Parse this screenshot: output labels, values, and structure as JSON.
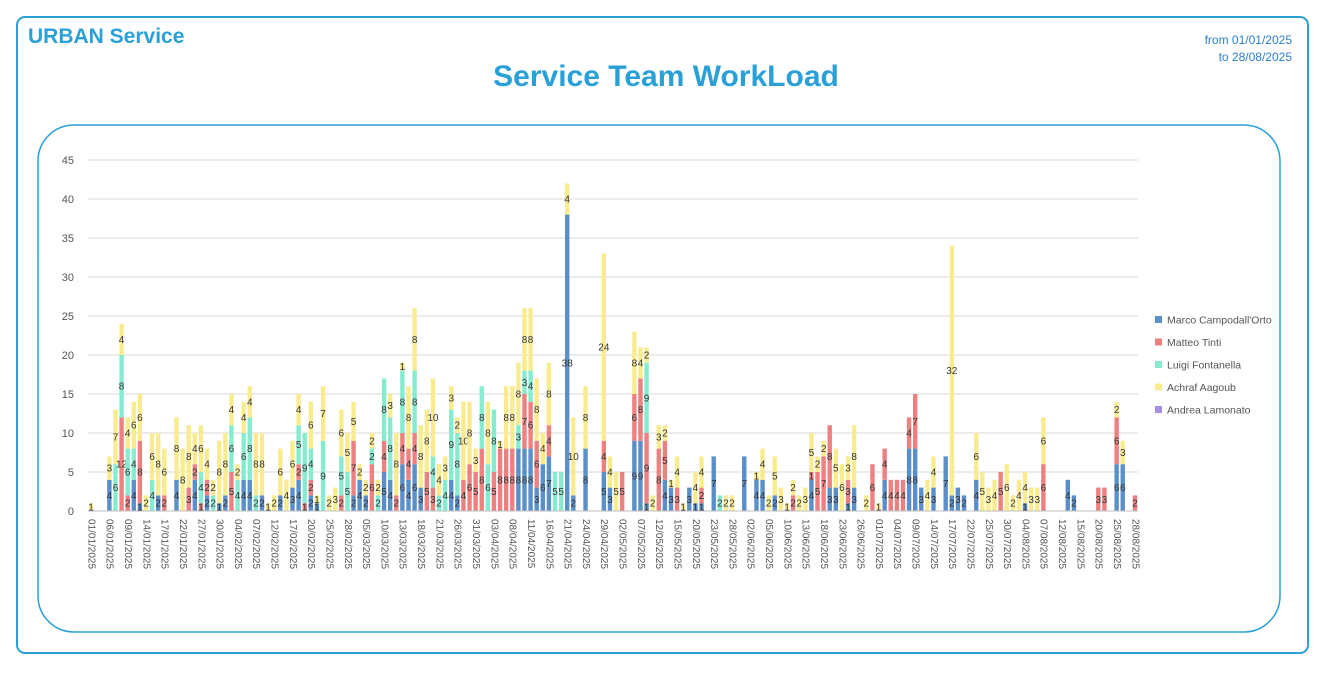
{
  "header": {
    "brand": "URBAN Service",
    "range_from": "from 01/01/2025",
    "range_to": "to 28/08/2025"
  },
  "chart_data": {
    "type": "stacked_bar",
    "title": "Service Team WorkLoad",
    "categories": [
      "01/01/2025",
      null,
      null,
      "06/01/2025",
      null,
      null,
      "09/01/2025",
      null,
      null,
      "14/01/2025",
      null,
      null,
      "17/01/2025",
      null,
      null,
      "22/01/2025",
      null,
      null,
      "27/01/2025",
      null,
      null,
      "30/01/2025",
      null,
      null,
      "04/02/2025",
      null,
      null,
      "07/02/2025",
      null,
      null,
      "12/02/2025",
      null,
      null,
      "17/02/2025",
      null,
      null,
      "20/02/2025",
      null,
      null,
      "25/02/2025",
      null,
      null,
      "28/02/2025",
      null,
      null,
      "05/03/2025",
      null,
      null,
      "10/03/2025",
      null,
      null,
      "13/03/2025",
      null,
      null,
      "18/03/2025",
      null,
      null,
      "21/03/2025",
      null,
      null,
      "26/03/2025",
      null,
      null,
      "31/03/2025",
      null,
      null,
      "03/04/2025",
      null,
      null,
      "08/04/2025",
      null,
      null,
      "11/04/2025",
      null,
      null,
      "16/04/2025",
      null,
      null,
      "21/04/2025",
      null,
      null,
      "24/04/2025",
      null,
      null,
      "29/04/2025",
      null,
      null,
      "02/05/2025",
      null,
      null,
      "07/05/2025",
      null,
      null,
      "12/05/2025",
      null,
      null,
      "15/05/2025",
      null,
      null,
      "20/05/2025",
      null,
      null,
      "23/05/2025",
      null,
      null,
      "28/05/2025",
      null,
      null,
      "02/06/2025",
      null,
      null,
      "05/06/2025",
      null,
      null,
      "10/06/2025",
      null,
      null,
      "13/06/2025",
      null,
      null,
      "18/06/2025",
      null,
      null,
      "23/06/2025",
      null,
      null,
      "26/06/2025",
      null,
      null,
      "01/07/2025",
      null,
      null,
      "04/07/2025",
      null,
      null,
      "09/07/2025",
      null,
      null,
      "14/07/2025",
      null,
      null,
      "17/07/2025",
      null,
      null,
      "22/07/2025",
      null,
      null,
      "25/07/2025",
      null,
      null,
      "30/07/2025",
      null,
      null,
      "04/08/2025",
      null,
      null,
      "07/08/2025",
      null,
      null,
      "12/08/2025",
      null,
      null,
      "15/08/2025",
      null,
      null,
      "20/08/2025",
      null,
      null,
      "25/08/2025",
      null,
      null,
      "28/08/2025"
    ],
    "series": [
      {
        "name": "Marco Campodall'Orto",
        "color": "#5b8fc9",
        "values": [
          null,
          null,
          null,
          4,
          null,
          null,
          null,
          4,
          1,
          null,
          null,
          2,
          null,
          null,
          4,
          null,
          null,
          4,
          null,
          2,
          null,
          1,
          2,
          null,
          null,
          4,
          4,
          null,
          2,
          null,
          null,
          2,
          null,
          3,
          4,
          null,
          2,
          1,
          null,
          null,
          null,
          null,
          null,
          2,
          4,
          2,
          null,
          null,
          5,
          4,
          null,
          6,
          4,
          6,
          3,
          null,
          null,
          null,
          null,
          4,
          2,
          null,
          null,
          null,
          null,
          null,
          null,
          null,
          null,
          null,
          8,
          8,
          8,
          3,
          6,
          7,
          null,
          null,
          38,
          2,
          null,
          8,
          null,
          null,
          5,
          3,
          null,
          null,
          null,
          9,
          9,
          1,
          null,
          null,
          4,
          3,
          null,
          null,
          3,
          1,
          1,
          null,
          7,
          null,
          null,
          null,
          null,
          7,
          null,
          4,
          4,
          null,
          2,
          null,
          null,
          null,
          null,
          null,
          4,
          null,
          null,
          3,
          3,
          null,
          1,
          3,
          null,
          null,
          null,
          null,
          4,
          null,
          null,
          null,
          8,
          8,
          3,
          null,
          3,
          null,
          7,
          2,
          3,
          2,
          null,
          4,
          null,
          null,
          null,
          null,
          null,
          null,
          null,
          1,
          null,
          null,
          null,
          null,
          null,
          null,
          4,
          2,
          null,
          null,
          null,
          null,
          null,
          null,
          6,
          6,
          null,
          null
        ]
      },
      {
        "name": "Matteo Tinti",
        "color": "#ee8080",
        "values": [
          null,
          null,
          null,
          null,
          null,
          12,
          2,
          null,
          8,
          null,
          null,
          null,
          2,
          null,
          null,
          null,
          3,
          2,
          1,
          2,
          null,
          null,
          null,
          5,
          null,
          null,
          null,
          null,
          null,
          null,
          null,
          null,
          null,
          null,
          2,
          1,
          2,
          null,
          null,
          null,
          null,
          2,
          null,
          7,
          null,
          null,
          6,
          null,
          4,
          null,
          2,
          4,
          4,
          4,
          null,
          5,
          3,
          null,
          null,
          null,
          null,
          4,
          6,
          5,
          8,
          null,
          5,
          8,
          8,
          8,
          null,
          7,
          6,
          6,
          null,
          4,
          null,
          null,
          null,
          null,
          null,
          null,
          null,
          null,
          4,
          null,
          null,
          5,
          null,
          6,
          8,
          9,
          null,
          8,
          5,
          null,
          3,
          null,
          null,
          null,
          2,
          null,
          null,
          null,
          null,
          null,
          null,
          null,
          null,
          null,
          null,
          null,
          null,
          null,
          null,
          2,
          null,
          null,
          1,
          5,
          7,
          8,
          null,
          null,
          3,
          null,
          null,
          null,
          6,
          null,
          4,
          4,
          4,
          4,
          4,
          7,
          null,
          null,
          null,
          null,
          null,
          null,
          null,
          null,
          null,
          null,
          null,
          null,
          null,
          5,
          null,
          null,
          null,
          null,
          null,
          null,
          6,
          null,
          null,
          null,
          null,
          null,
          null,
          null,
          null,
          3,
          3,
          null,
          6,
          null,
          null,
          2
        ]
      },
      {
        "name": "Luigi Fontanella",
        "color": "#86ecd0",
        "values": [
          null,
          null,
          null,
          null,
          6,
          8,
          6,
          4,
          null,
          null,
          4,
          null,
          null,
          null,
          null,
          null,
          null,
          null,
          4,
          null,
          2,
          null,
          null,
          6,
          4,
          6,
          8,
          2,
          null,
          null,
          null,
          null,
          null,
          null,
          5,
          9,
          4,
          null,
          9,
          null,
          null,
          5,
          5,
          null,
          null,
          null,
          2,
          2,
          8,
          8,
          null,
          8,
          null,
          8,
          null,
          null,
          4,
          2,
          4,
          9,
          8,
          null,
          null,
          null,
          8,
          6,
          8,
          null,
          null,
          null,
          3,
          3,
          4,
          null,
          null,
          null,
          5,
          5,
          null,
          null,
          null,
          null,
          null,
          null,
          null,
          null,
          null,
          null,
          null,
          null,
          null,
          9,
          null,
          null,
          null,
          null,
          null,
          null,
          null,
          null,
          null,
          null,
          null,
          2,
          null,
          null,
          null,
          null,
          null,
          null,
          null,
          null,
          null,
          null,
          null,
          null,
          null,
          null,
          null,
          null,
          null,
          null,
          null,
          null,
          null,
          null,
          null,
          null,
          null,
          null,
          null,
          null,
          null,
          null,
          null,
          null,
          null,
          null,
          null,
          null,
          null,
          null,
          null,
          null,
          null,
          null,
          null,
          null,
          null,
          null,
          null,
          null,
          null,
          null,
          null,
          null,
          null,
          null,
          null,
          null,
          null,
          null,
          null,
          null,
          null,
          null,
          null,
          null,
          null,
          null,
          null,
          null
        ]
      },
      {
        "name": "Achraf Aagoub",
        "color": "#f9ec8f",
        "values": [
          1,
          null,
          null,
          3,
          7,
          4,
          4,
          6,
          6,
          2,
          6,
          8,
          6,
          null,
          8,
          8,
          8,
          4,
          6,
          4,
          2,
          8,
          8,
          4,
          2,
          4,
          4,
          8,
          8,
          1,
          2,
          6,
          4,
          6,
          4,
          null,
          6,
          1,
          7,
          2,
          3,
          6,
          5,
          5,
          2,
          2,
          2,
          2,
          null,
          3,
          8,
          1,
          8,
          8,
          8,
          8,
          10,
          4,
          3,
          3,
          2,
          10,
          8,
          3,
          null,
          8,
          null,
          1,
          8,
          8,
          8,
          8,
          8,
          8,
          4,
          8,
          null,
          null,
          4,
          10,
          null,
          8,
          null,
          null,
          24,
          4,
          5,
          null,
          null,
          8,
          4,
          2,
          2,
          3,
          2,
          1,
          4,
          1,
          null,
          4,
          4,
          null,
          null,
          null,
          2,
          2,
          null,
          null,
          null,
          1,
          4,
          2,
          5,
          3,
          1,
          2,
          2,
          3,
          5,
          2,
          2,
          null,
          5,
          6,
          3,
          8,
          null,
          2,
          null,
          1,
          null,
          null,
          null,
          null,
          null,
          null,
          null,
          4,
          4,
          null,
          null,
          32,
          null,
          null,
          null,
          6,
          5,
          3,
          4,
          null,
          6,
          2,
          4,
          4,
          3,
          3,
          6,
          null,
          null,
          null,
          null,
          null,
          null,
          null,
          null,
          null,
          null,
          null,
          2,
          3,
          null,
          null
        ]
      },
      {
        "name": "Andrea Lamonato",
        "color": "#a98ee6",
        "values": [
          null,
          null,
          null,
          null,
          null,
          null,
          null,
          null,
          null,
          null,
          null,
          null,
          null,
          null,
          null,
          null,
          null,
          null,
          null,
          null,
          null,
          null,
          null,
          null,
          null,
          null,
          null,
          null,
          null,
          null,
          null,
          null,
          null,
          null,
          null,
          null,
          null,
          null,
          null,
          null,
          null,
          null,
          null,
          null,
          null,
          null,
          null,
          null,
          null,
          null,
          null,
          null,
          null,
          null,
          null,
          null,
          null,
          null,
          null,
          null,
          null,
          null,
          null,
          null,
          null,
          null,
          null,
          null,
          null,
          null,
          null,
          null,
          null,
          null,
          null,
          null,
          null,
          null,
          null,
          null,
          null,
          null,
          null,
          null,
          null,
          null,
          null,
          null,
          null,
          null,
          null,
          null,
          null,
          null,
          null,
          null,
          null,
          null,
          null,
          null,
          null,
          null,
          null,
          null,
          null,
          null,
          null,
          null,
          null,
          null,
          null,
          null,
          null,
          null,
          null,
          null,
          null,
          null,
          null,
          null,
          null,
          null,
          null,
          null,
          null,
          null,
          null,
          null,
          null,
          null,
          null,
          null,
          null,
          null,
          null,
          null,
          null,
          null,
          null,
          null,
          null,
          null,
          null,
          null,
          null,
          null,
          null,
          null,
          null,
          null,
          null,
          null,
          null,
          null,
          null,
          null,
          null,
          null,
          null,
          null,
          null,
          null,
          null,
          null,
          null,
          null,
          null,
          null,
          null,
          null,
          null,
          null
        ]
      }
    ],
    "ylim": [
      0,
      45
    ],
    "yticks": [
      0,
      5,
      10,
      15,
      20,
      25,
      30,
      35,
      40,
      45
    ],
    "grid": true,
    "legend": "right"
  }
}
